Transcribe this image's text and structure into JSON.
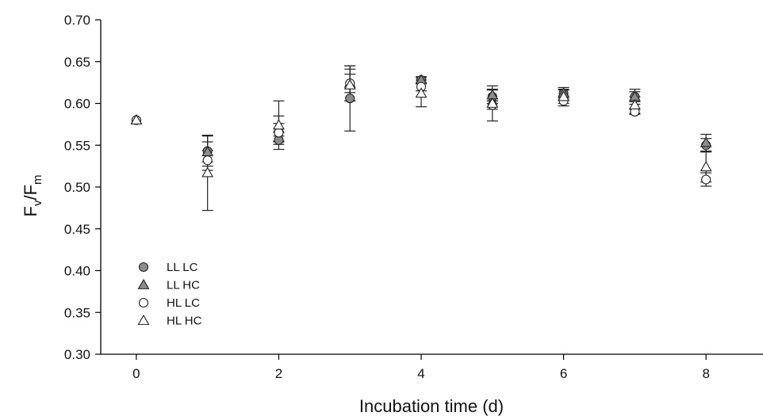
{
  "chart_data": {
    "type": "scatter",
    "title": "",
    "xlabel": "Incubation time (d)",
    "ylabel": {
      "base": "F",
      "sub1": "v",
      "sep": "/F",
      "sub2": "m"
    },
    "xlim": [
      -0.5,
      8.8
    ],
    "ylim": [
      0.3,
      0.7
    ],
    "xticks": [
      0,
      2,
      4,
      6,
      8
    ],
    "yticks": [
      0.3,
      0.35,
      0.4,
      0.45,
      0.5,
      0.55,
      0.6,
      0.65,
      0.7
    ],
    "ytick_labels": [
      "0.30",
      "0.35",
      "0.40",
      "0.45",
      "0.50",
      "0.55",
      "0.60",
      "0.65",
      "0.70"
    ],
    "xtick_labels": [
      "0",
      "2",
      "4",
      "6",
      "8"
    ],
    "grid": false,
    "legend_position": "bottom-left",
    "series": [
      {
        "name": "LL LC",
        "marker": "circle",
        "fill": "#8c8c8c",
        "points": [
          {
            "x": 0,
            "y": 0.58,
            "err": 0.0
          },
          {
            "x": 1,
            "y": 0.543,
            "err": 0.018
          },
          {
            "x": 2,
            "y": 0.556,
            "err": 0.005
          },
          {
            "x": 3,
            "y": 0.606,
            "err": 0.039
          },
          {
            "x": 4,
            "y": 0.628,
            "err": 0.003
          },
          {
            "x": 5,
            "y": 0.608,
            "err": 0.008
          },
          {
            "x": 6,
            "y": 0.612,
            "err": 0.005
          },
          {
            "x": 7,
            "y": 0.608,
            "err": 0.006
          },
          {
            "x": 8,
            "y": 0.55,
            "err": 0.008
          }
        ]
      },
      {
        "name": "LL HC",
        "marker": "triangle",
        "fill": "#8c8c8c",
        "points": [
          {
            "x": 0,
            "y": 0.58,
            "err": 0.0
          },
          {
            "x": 1,
            "y": 0.542,
            "err": 0.012
          },
          {
            "x": 2,
            "y": 0.57,
            "err": 0.015
          },
          {
            "x": 3,
            "y": 0.624,
            "err": 0.021
          },
          {
            "x": 4,
            "y": 0.628,
            "err": 0.004
          },
          {
            "x": 5,
            "y": 0.61,
            "err": 0.007
          },
          {
            "x": 6,
            "y": 0.612,
            "err": 0.007
          },
          {
            "x": 7,
            "y": 0.608,
            "err": 0.009
          },
          {
            "x": 8,
            "y": 0.553,
            "err": 0.01
          }
        ]
      },
      {
        "name": "HL LC",
        "marker": "circle",
        "fill": "#ffffff",
        "points": [
          {
            "x": 0,
            "y": 0.58,
            "err": 0.0
          },
          {
            "x": 1,
            "y": 0.532,
            "err": 0.012
          },
          {
            "x": 2,
            "y": 0.565,
            "err": 0.011
          },
          {
            "x": 3,
            "y": 0.624,
            "err": 0.011
          },
          {
            "x": 4,
            "y": 0.62,
            "err": 0.005
          },
          {
            "x": 5,
            "y": 0.598,
            "err": 0.005
          },
          {
            "x": 6,
            "y": 0.603,
            "err": 0.006
          },
          {
            "x": 7,
            "y": 0.59,
            "err": 0.003
          },
          {
            "x": 8,
            "y": 0.509,
            "err": 0.008
          }
        ]
      },
      {
        "name": "HL HC",
        "marker": "triangle",
        "fill": "#ffffff",
        "points": [
          {
            "x": 0,
            "y": 0.58,
            "err": 0.0
          },
          {
            "x": 1,
            "y": 0.517,
            "err": 0.045
          },
          {
            "x": 2,
            "y": 0.574,
            "err": 0.029
          },
          {
            "x": 3,
            "y": 0.622,
            "err": 0.019
          },
          {
            "x": 4,
            "y": 0.612,
            "err": 0.016
          },
          {
            "x": 5,
            "y": 0.6,
            "err": 0.021
          },
          {
            "x": 6,
            "y": 0.608,
            "err": 0.008
          },
          {
            "x": 7,
            "y": 0.598,
            "err": 0.01
          },
          {
            "x": 8,
            "y": 0.524,
            "err": 0.018
          }
        ]
      }
    ]
  }
}
